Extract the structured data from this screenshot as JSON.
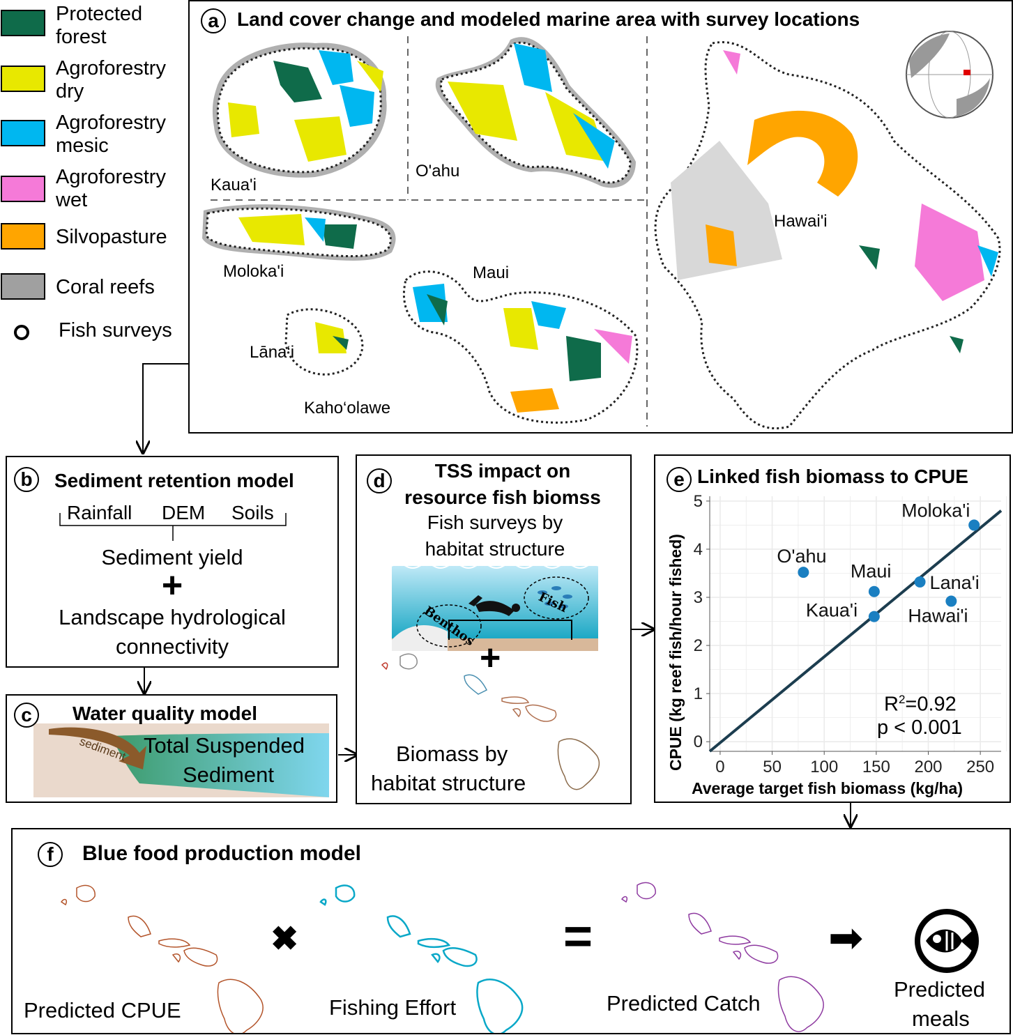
{
  "legend": {
    "items": [
      {
        "label_line1": "Protected",
        "label_line2": "forest",
        "color": "#0f6b4a",
        "icon": "square-swatch"
      },
      {
        "label_line1": "Agroforestry",
        "label_line2": "dry",
        "color": "#e8e800",
        "icon": "square-swatch"
      },
      {
        "label_line1": "Agroforestry",
        "label_line2": "mesic",
        "color": "#00b7f0",
        "icon": "square-swatch"
      },
      {
        "label_line1": "Agroforestry",
        "label_line2": "wet",
        "color": "#f57ad8",
        "icon": "square-swatch"
      },
      {
        "label_line1": "Silvopasture",
        "label_line2": "",
        "color": "#ffa500",
        "icon": "square-swatch"
      },
      {
        "label_line1": "Coral reefs",
        "label_line2": "",
        "color": "#a0a0a0",
        "icon": "square-swatch"
      },
      {
        "label_line1": "Fish surveys",
        "label_line2": "",
        "color": "#ffffff",
        "icon": "circle-marker"
      }
    ]
  },
  "panel_a": {
    "letter": "a",
    "title": "Land cover change and modeled marine area with survey locations",
    "islands": [
      "Kaua'i",
      "O'ahu",
      "Hawai'i",
      "Moloka'i",
      "Maui",
      "Lāna‘i",
      "Kaho‘olawe"
    ]
  },
  "panel_b": {
    "letter": "b",
    "title": "Sediment retention model",
    "inputs": [
      "Rainfall",
      "DEM",
      "Soils"
    ],
    "output": "Sediment yield",
    "plus": "+",
    "factor_line1": "Landscape hydrological",
    "factor_line2": "connectivity"
  },
  "panel_c": {
    "letter": "c",
    "title": "Water quality model",
    "flow_label": "sediment",
    "result_line1": "Total Suspended",
    "result_line2": "Sediment"
  },
  "panel_d": {
    "letter": "d",
    "title_line1": "TSS impact on",
    "title_line2": "resource fish biomss",
    "sub_line1": "Fish surveys by",
    "sub_line2": "habitat structure",
    "tag_benthos": "Benthos",
    "tag_fish": "Fish",
    "plus": "+",
    "result_line1": "Biomass by",
    "result_line2": "habitat structure"
  },
  "panel_e": {
    "letter": "e",
    "title": "Linked fish biomass to CPUE",
    "chart_data": {
      "type": "scatter",
      "xlabel": "Average target fish biomass (kg/ha)",
      "ylabel": "CPUE (kg reef fish/hour fished)",
      "xlim": [
        -10,
        270
      ],
      "ylim": [
        -0.2,
        5.1
      ],
      "xticks": [
        0,
        50,
        100,
        150,
        200,
        250
      ],
      "yticks": [
        0,
        1,
        2,
        3,
        4,
        5
      ],
      "grid": true,
      "point_color": "#1a7fc1",
      "line_color": "#1c3d4f",
      "points": [
        {
          "label": "Moloka'i",
          "x": 244,
          "y": 4.5
        },
        {
          "label": "O'ahu",
          "x": 80,
          "y": 3.52
        },
        {
          "label": "Maui",
          "x": 148,
          "y": 3.12
        },
        {
          "label": "Lana'i",
          "x": 192,
          "y": 3.32
        },
        {
          "label": "Kaua'i",
          "x": 148,
          "y": 2.6
        },
        {
          "label": "Hawai'i",
          "x": 222,
          "y": 2.92
        }
      ],
      "fit_line": {
        "x": [
          -10,
          270
        ],
        "y": [
          -0.2,
          4.8
        ]
      },
      "stats": {
        "r2_prefix": "R",
        "r2_sup": "2",
        "r2_value": "=0.92",
        "p": "p < 0.001"
      }
    }
  },
  "panel_f": {
    "letter": "f",
    "title": "Blue food production model",
    "terms": [
      {
        "label": "Predicted CPUE",
        "color": "#b3542a"
      },
      {
        "label": "Fishing Effort",
        "color": "#0aa8c8"
      },
      {
        "label": "Predicted Catch",
        "color": "#8e3aa0"
      }
    ],
    "times": "✖",
    "equals": "=",
    "arrow": "➡",
    "result_line1": "Predicted",
    "result_line2": "meals"
  }
}
